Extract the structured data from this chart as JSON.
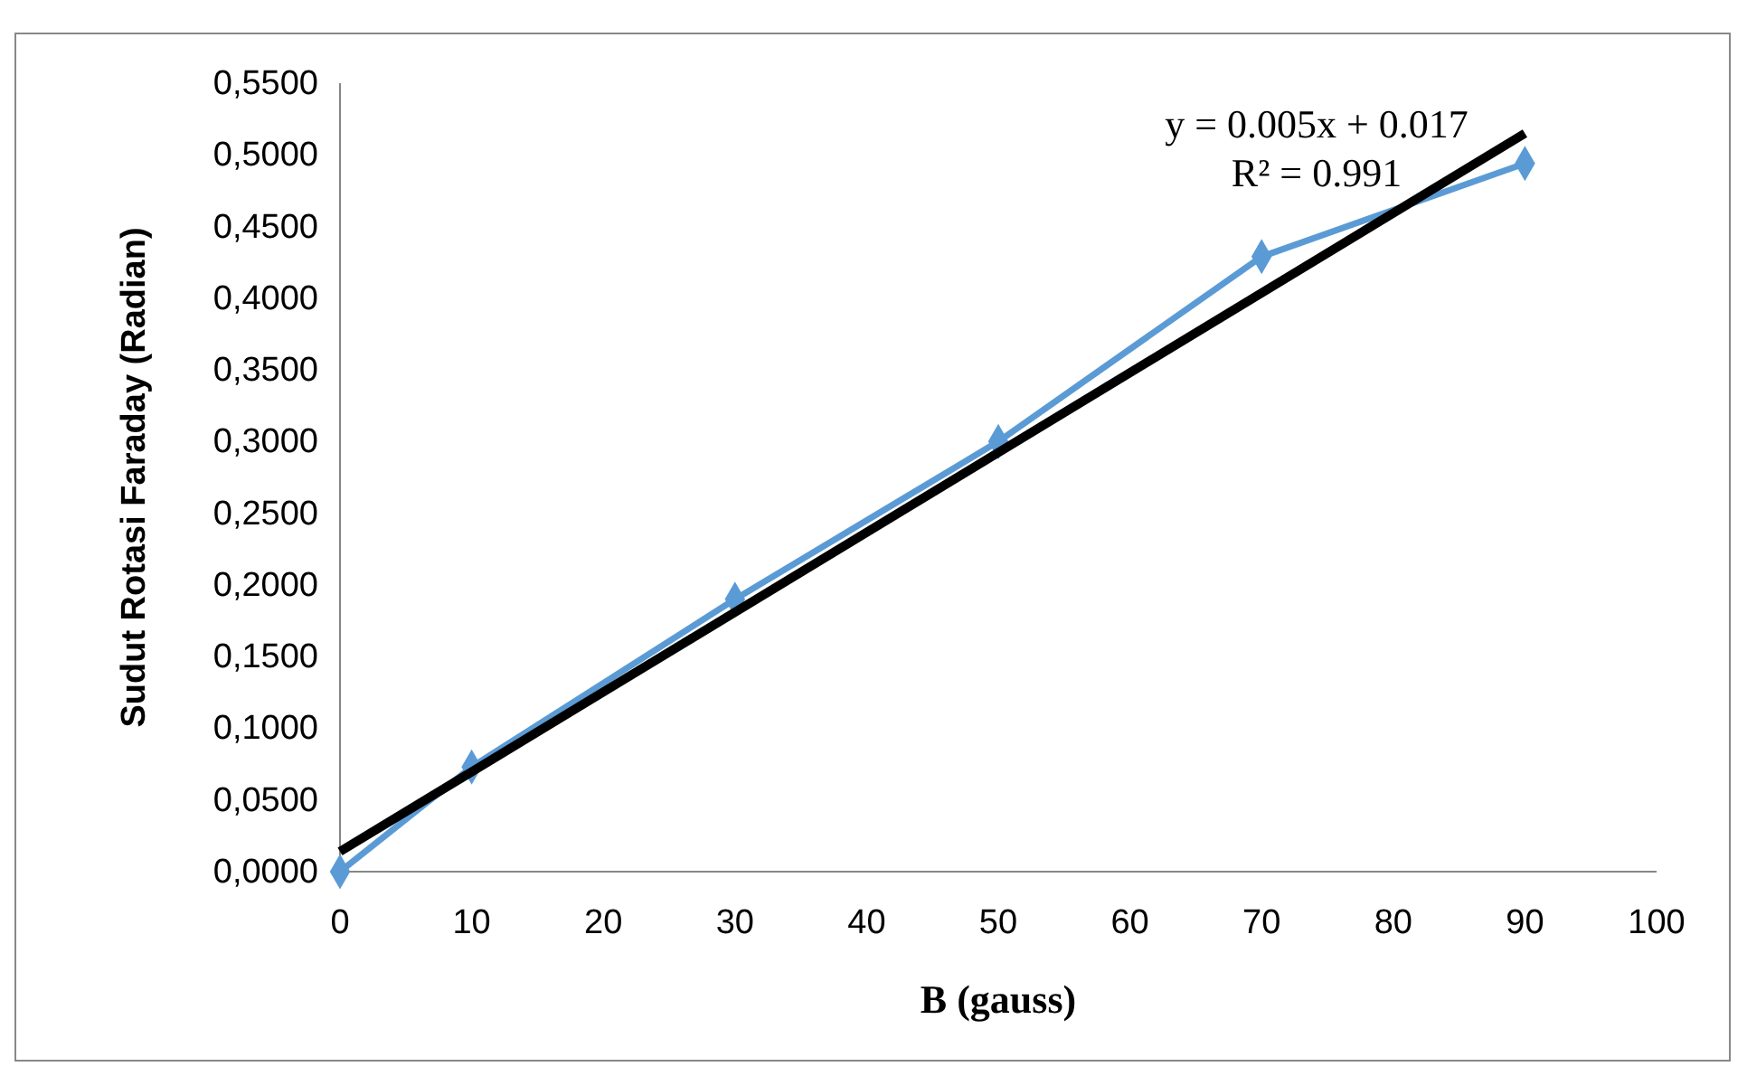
{
  "chart_data": {
    "type": "line",
    "xlabel": "B (gauss)",
    "ylabel": "Sudut Rotasi Faraday (Radian)",
    "x": [
      0,
      10,
      30,
      50,
      70,
      90
    ],
    "series": [
      {
        "color": "#5b9bd5",
        "values": [
          0,
          0.073,
          0.19,
          0.3,
          0.429,
          0.494
        ],
        "marker": "diamond"
      },
      {
        "type": "line",
        "color": "#000000",
        "x": [
          0,
          90
        ],
        "values": [
          0.014,
          0.515
        ],
        "marker": "none"
      }
    ],
    "xlim": [
      0,
      100
    ],
    "xticks": [
      0,
      10,
      20,
      30,
      40,
      50,
      60,
      70,
      80,
      90,
      100
    ],
    "ylim": [
      0,
      0.55
    ],
    "yticks": [
      {
        "value": 0,
        "label": "0,0000"
      },
      {
        "value": 0.05,
        "label": "0,0500"
      },
      {
        "value": 0.1,
        "label": "0,1000"
      },
      {
        "value": 0.15,
        "label": "0,1500"
      },
      {
        "value": 0.2,
        "label": "0,2000"
      },
      {
        "value": 0.25,
        "label": "0,2500"
      },
      {
        "value": 0.3,
        "label": "0,3000"
      },
      {
        "value": 0.35,
        "label": "0,3500"
      },
      {
        "value": 0.4,
        "label": "0,4000"
      },
      {
        "value": 0.45,
        "label": "0,4500"
      },
      {
        "value": 0.5,
        "label": "0,5000"
      },
      {
        "value": 0.55,
        "label": "0,5500"
      }
    ],
    "grid": false,
    "annotations": [
      "y = 0.005x + 0.017",
      "R² = 0.991"
    ]
  }
}
